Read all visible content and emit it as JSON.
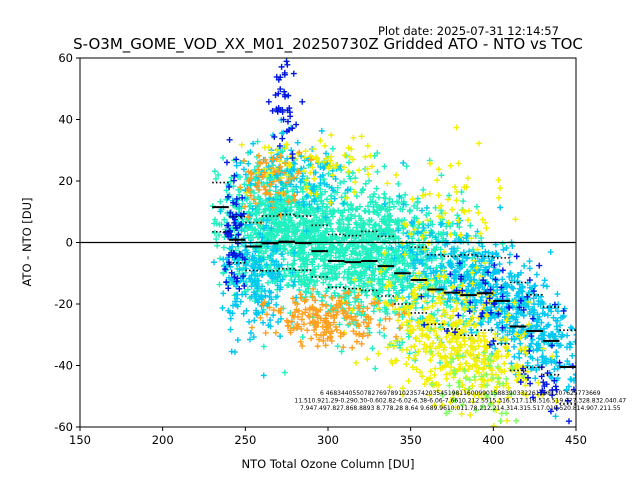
{
  "plot_date": "Plot date: 2025-07-31 12:14:57",
  "chart_data": {
    "type": "scatter",
    "title": "S-O3M_GOME_VOD_XX_M01_20250730Z Gridded ATO - NTO vs TOC",
    "xlabel": "NTO Total Ozone Column [DU]",
    "ylabel": "ATO - NTO [DU]",
    "xlim": [
      150,
      450
    ],
    "ylim": [
      -60,
      60
    ],
    "xticks": [
      150,
      200,
      250,
      300,
      350,
      400,
      450
    ],
    "yticks": [
      -60,
      -40,
      -20,
      0,
      20,
      40,
      60
    ],
    "grid": false,
    "zero_line": 0,
    "colors": {
      "cyan": "#00c8f0",
      "aquamarine": "#20f0c0",
      "yellow": "#f0f000",
      "orange": "#ffa020",
      "blue": "#0018e0",
      "green": "#80ff60",
      "mean_marker": "#000000"
    },
    "binned_mean": [
      {
        "x": 235,
        "y": 11.5
      },
      {
        "x": 245,
        "y": 0.9
      },
      {
        "x": 255,
        "y": -1.3
      },
      {
        "x": 265,
        "y": -0.3
      },
      {
        "x": 275,
        "y": 0.3
      },
      {
        "x": 285,
        "y": -0.2
      },
      {
        "x": 295,
        "y": -2.8
      },
      {
        "x": 305,
        "y": -6.0
      },
      {
        "x": 315,
        "y": -6.4
      },
      {
        "x": 325,
        "y": -6.0
      },
      {
        "x": 335,
        "y": -7.7
      },
      {
        "x": 345,
        "y": -10.0
      },
      {
        "x": 355,
        "y": -12.2
      },
      {
        "x": 365,
        "y": -15.3
      },
      {
        "x": 375,
        "y": -16.3
      },
      {
        "x": 385,
        "y": -17.1
      },
      {
        "x": 395,
        "y": -16.5
      },
      {
        "x": 405,
        "y": -19.0
      },
      {
        "x": 415,
        "y": -27.3
      },
      {
        "x": 425,
        "y": -28.8
      },
      {
        "x": 435,
        "y": -32.0
      },
      {
        "x": 445,
        "y": -40.5
      }
    ],
    "binned_upper": [
      {
        "x": 235,
        "y": 19.5
      },
      {
        "x": 245,
        "y": 8.4
      },
      {
        "x": 255,
        "y": 6.5
      },
      {
        "x": 265,
        "y": 8.6
      },
      {
        "x": 275,
        "y": 9.1
      },
      {
        "x": 285,
        "y": 8.6
      },
      {
        "x": 295,
        "y": 5.6
      },
      {
        "x": 305,
        "y": 2.6
      },
      {
        "x": 315,
        "y": 2.2
      },
      {
        "x": 325,
        "y": 3.6
      },
      {
        "x": 335,
        "y": 2.0
      },
      {
        "x": 345,
        "y": 0.0
      },
      {
        "x": 355,
        "y": -1.5
      },
      {
        "x": 365,
        "y": -4.0
      },
      {
        "x": 375,
        "y": -4.5
      },
      {
        "x": 385,
        "y": -4.0
      },
      {
        "x": 395,
        "y": -4.5
      },
      {
        "x": 405,
        "y": -5.0
      },
      {
        "x": 415,
        "y": -13.0
      },
      {
        "x": 425,
        "y": -17.0
      },
      {
        "x": 435,
        "y": -21.0
      },
      {
        "x": 445,
        "y": -28.5
      }
    ],
    "binned_lower": [
      {
        "x": 235,
        "y": 3.5
      },
      {
        "x": 245,
        "y": -6.6
      },
      {
        "x": 255,
        "y": -9.1
      },
      {
        "x": 265,
        "y": -9.2
      },
      {
        "x": 275,
        "y": -8.5
      },
      {
        "x": 285,
        "y": -9.0
      },
      {
        "x": 295,
        "y": -11.2
      },
      {
        "x": 305,
        "y": -14.6
      },
      {
        "x": 315,
        "y": -15.0
      },
      {
        "x": 325,
        "y": -15.6
      },
      {
        "x": 335,
        "y": -17.4
      },
      {
        "x": 345,
        "y": -20.0
      },
      {
        "x": 355,
        "y": -22.9
      },
      {
        "x": 365,
        "y": -26.6
      },
      {
        "x": 375,
        "y": -28.1
      },
      {
        "x": 385,
        "y": -30.2
      },
      {
        "x": 395,
        "y": -28.5
      },
      {
        "x": 405,
        "y": -33.0
      },
      {
        "x": 415,
        "y": -41.6
      },
      {
        "x": 425,
        "y": -40.6
      },
      {
        "x": 435,
        "y": -43.0
      },
      {
        "x": 445,
        "y": -52.5
      }
    ],
    "stats_rows": [
      "6    468344055078276978910235742035451981160099015883903322611981207625773669",
      "11.510.921.29-0.290.30-0.602.82-6.02-6.38-6.06-7.6610.212.5515.316.517.118.516.519.027.328.832.040.47",
      "7.947.497.827.868.8893 8.778.28 8.64 9.689.9610.011.78.212.214.314.315.517.019.520.814.907.211.55"
    ],
    "series": [
      {
        "color": "aquamarine",
        "clusters": [
          {
            "cx": 290,
            "cy": 0,
            "sx": 28,
            "sy": 11,
            "n": 900,
            "slope": -0.12
          },
          {
            "cx": 340,
            "cy": -5,
            "sx": 25,
            "sy": 12,
            "n": 700,
            "slope": -0.15
          },
          {
            "cx": 265,
            "cy": 8,
            "sx": 15,
            "sy": 10,
            "n": 300,
            "slope": 0
          }
        ]
      },
      {
        "color": "cyan",
        "clusters": [
          {
            "cx": 395,
            "cy": -15,
            "sx": 25,
            "sy": 8,
            "n": 550,
            "slope": -0.25
          },
          {
            "cx": 430,
            "cy": -33,
            "sx": 12,
            "sy": 7,
            "n": 120,
            "slope": -0.3
          },
          {
            "cx": 255,
            "cy": -12,
            "sx": 10,
            "sy": 10,
            "n": 200,
            "slope": 0
          },
          {
            "cx": 280,
            "cy": 20,
            "sx": 20,
            "sy": 6,
            "n": 150,
            "slope": 0
          }
        ]
      },
      {
        "color": "yellow",
        "clusters": [
          {
            "cx": 370,
            "cy": -30,
            "sx": 22,
            "sy": 10,
            "n": 350,
            "slope": -0.2
          },
          {
            "cx": 395,
            "cy": -40,
            "sx": 18,
            "sy": 8,
            "n": 120,
            "slope": 0
          },
          {
            "cx": 375,
            "cy": 10,
            "sx": 15,
            "sy": 10,
            "n": 60,
            "slope": 0
          },
          {
            "cx": 290,
            "cy": 25,
            "sx": 20,
            "sy": 5,
            "n": 80,
            "slope": 0
          }
        ]
      },
      {
        "color": "orange",
        "clusters": [
          {
            "cx": 300,
            "cy": -25,
            "sx": 18,
            "sy": 4,
            "n": 180,
            "slope": 0
          },
          {
            "cx": 265,
            "cy": 20,
            "sx": 10,
            "sy": 5,
            "n": 60,
            "slope": 0
          }
        ]
      },
      {
        "color": "blue",
        "clusters": [
          {
            "cx": 275,
            "cy": 45,
            "sx": 5,
            "sy": 7,
            "n": 40,
            "slope": 0
          },
          {
            "cx": 243,
            "cy": 5,
            "sx": 3,
            "sy": 12,
            "n": 60,
            "slope": 0
          },
          {
            "cx": 435,
            "cy": -45,
            "sx": 10,
            "sy": 6,
            "n": 30,
            "slope": 0
          },
          {
            "cx": 400,
            "cy": -20,
            "sx": 18,
            "sy": 8,
            "n": 50,
            "slope": 0
          }
        ]
      },
      {
        "color": "green",
        "clusters": [
          {
            "cx": 390,
            "cy": -45,
            "sx": 15,
            "sy": 6,
            "n": 50,
            "slope": 0
          }
        ]
      }
    ]
  }
}
